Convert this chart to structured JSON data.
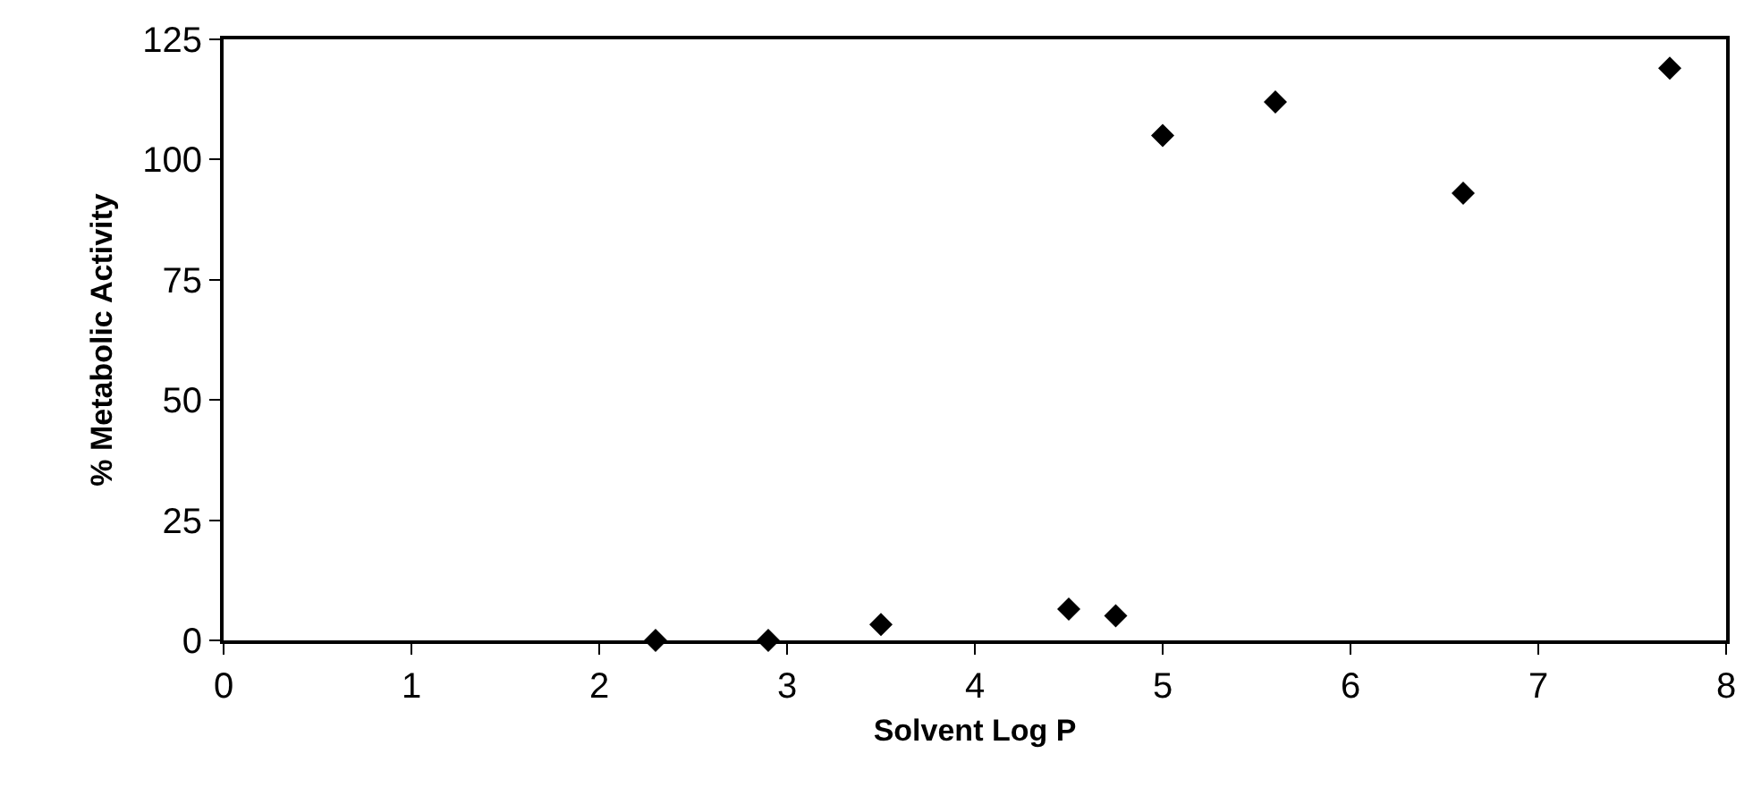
{
  "chart_data": {
    "type": "scatter",
    "xlabel": "Solvent Log P",
    "ylabel": "% Metabolic Activity",
    "x": [
      2.3,
      2.9,
      3.5,
      4.5,
      4.75,
      5.0,
      5.6,
      6.6,
      7.7
    ],
    "values": [
      0,
      0,
      3.3,
      6.5,
      5.1,
      105,
      112,
      93,
      119
    ],
    "color": "#000000",
    "marker": "diamond",
    "xlim": [
      0,
      8
    ],
    "xticks": [
      0,
      1,
      2,
      3,
      4,
      5,
      6,
      7,
      8
    ],
    "ylim": [
      0,
      125
    ],
    "yticks": [
      0,
      25,
      50,
      75,
      100,
      125
    ],
    "grid": false
  }
}
